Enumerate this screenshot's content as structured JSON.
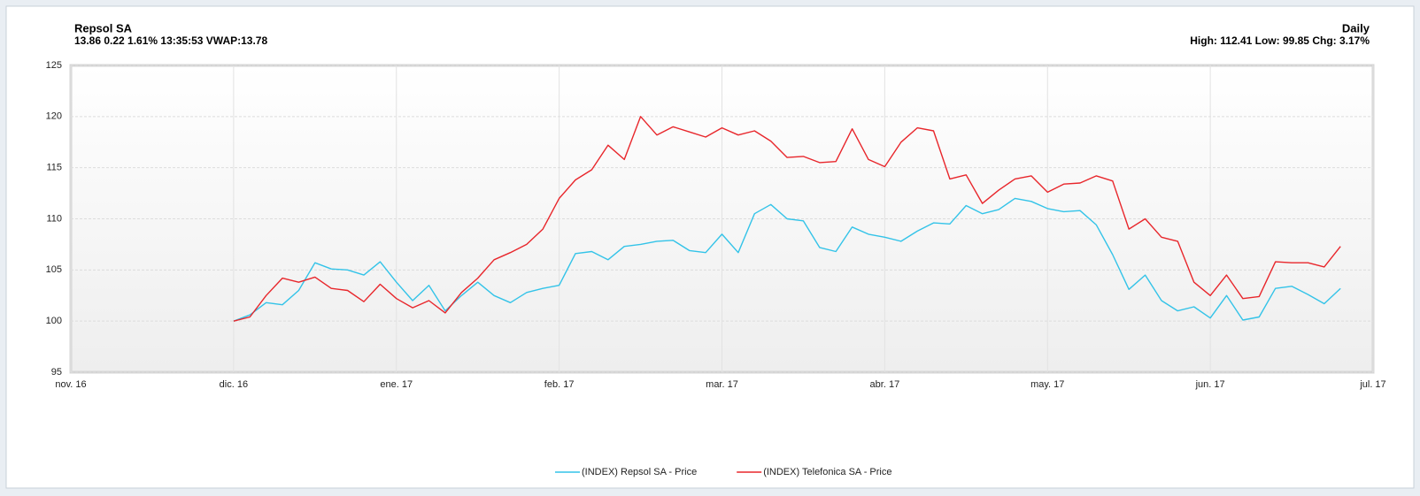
{
  "chart_data": {
    "type": "line",
    "title": "Repsol SA",
    "subtitle": "13.86 0.22 1.61% 13:35:53 VWAP:13.78",
    "period": "Daily",
    "stats": "High: 112.41 Low: 99.85 Chg: 3.17%",
    "x": [
      1.0,
      1.1,
      1.2,
      1.3,
      1.4,
      1.5,
      1.6,
      1.7,
      1.8,
      1.9,
      2.0,
      2.1,
      2.2,
      2.3,
      2.4,
      2.5,
      2.6,
      2.7,
      2.8,
      2.9,
      3.0,
      3.1,
      3.2,
      3.3,
      3.4,
      3.5,
      3.6,
      3.7,
      3.8,
      3.9,
      4.0,
      4.1,
      4.2,
      4.3,
      4.4,
      4.5,
      4.6,
      4.7,
      4.8,
      4.9,
      5.0,
      5.1,
      5.2,
      5.3,
      5.4,
      5.5,
      5.6,
      5.7,
      5.8,
      5.9,
      6.0,
      6.1,
      6.2,
      6.3,
      6.4,
      6.5,
      6.6,
      6.7,
      6.8,
      6.9,
      7.0,
      7.1,
      7.2,
      7.3,
      7.4,
      7.5,
      7.6,
      7.7,
      7.8
    ],
    "series": [
      {
        "name": "(INDEX) Repsol SA - Price",
        "color": "#33c3e8",
        "values": [
          100.0,
          100.6,
          101.8,
          101.6,
          103.0,
          105.7,
          105.1,
          105.0,
          104.5,
          105.8,
          103.8,
          102.0,
          103.5,
          101.0,
          102.5,
          103.8,
          102.5,
          101.8,
          102.8,
          103.2,
          103.5,
          106.6,
          106.8,
          106.0,
          107.3,
          107.5,
          107.8,
          107.9,
          106.9,
          106.7,
          108.5,
          106.7,
          110.5,
          111.4,
          110.0,
          109.8,
          107.2,
          106.8,
          109.2,
          108.5,
          108.2,
          107.8,
          108.8,
          109.6,
          109.5,
          111.3,
          110.5,
          110.9,
          112.0,
          111.7,
          111.0,
          110.7,
          110.8,
          109.4,
          106.5,
          103.1,
          104.5,
          102.0,
          101.0,
          101.4,
          100.3,
          102.5,
          100.1,
          100.4,
          103.2,
          103.4,
          102.6,
          101.7,
          103.2
        ]
      },
      {
        "name": "(INDEX) Telefonica SA - Price",
        "color": "#e8262b",
        "values": [
          100.0,
          100.4,
          102.5,
          104.2,
          103.8,
          104.3,
          103.2,
          103.0,
          101.9,
          103.6,
          102.2,
          101.3,
          102.0,
          100.8,
          102.8,
          104.2,
          106.0,
          106.7,
          107.5,
          109.0,
          112.0,
          113.8,
          114.8,
          117.2,
          115.8,
          120.0,
          118.2,
          119.0,
          118.5,
          118.0,
          118.9,
          118.2,
          118.6,
          117.6,
          116.0,
          116.1,
          115.5,
          115.6,
          118.8,
          115.8,
          115.1,
          117.5,
          118.9,
          118.6,
          113.9,
          114.3,
          111.5,
          112.8,
          113.9,
          114.2,
          112.6,
          113.4,
          113.5,
          114.2,
          113.7,
          109.0,
          110.0,
          108.2,
          107.8,
          103.8,
          102.5,
          104.5,
          102.2,
          102.4,
          105.8,
          105.7,
          105.7,
          105.3,
          107.3
        ]
      }
    ],
    "xlim": [
      0,
      8
    ],
    "xticks": [
      {
        "value": 0,
        "label": "nov. 16"
      },
      {
        "value": 1,
        "label": "dic. 16"
      },
      {
        "value": 2,
        "label": "ene. 17"
      },
      {
        "value": 3,
        "label": "feb. 17"
      },
      {
        "value": 4,
        "label": "mar. 17"
      },
      {
        "value": 5,
        "label": "abr. 17"
      },
      {
        "value": 6,
        "label": "may. 17"
      },
      {
        "value": 7,
        "label": "jun. 17"
      },
      {
        "value": 8,
        "label": "jul. 17"
      }
    ],
    "ylim": [
      95,
      125
    ],
    "yticks": [
      95,
      100,
      105,
      110,
      115,
      120,
      125
    ],
    "grid": true
  }
}
